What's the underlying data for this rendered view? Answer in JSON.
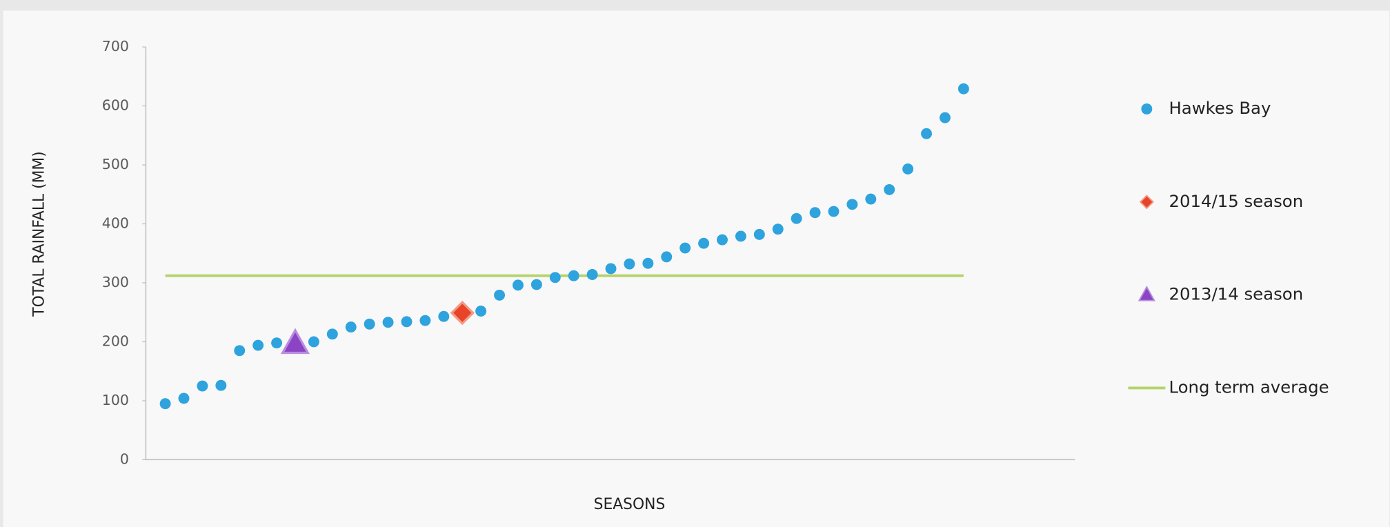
{
  "chart_data": {
    "type": "scatter",
    "xlabel": "SEASONS",
    "ylabel": "TOTAL RAINFALL (MM)",
    "xlim": [
      0,
      50
    ],
    "ylim": [
      0,
      700
    ],
    "yticks": [
      0,
      100,
      200,
      300,
      400,
      500,
      600,
      700
    ],
    "legend": "right",
    "series": [
      {
        "name": "Hawkes Bay",
        "color": "#2ea3dd",
        "marker": "circle",
        "x": [
          1,
          2,
          3,
          4,
          5,
          6,
          7,
          8,
          9,
          10,
          11,
          12,
          13,
          14,
          15,
          16,
          17,
          18,
          19,
          20,
          21,
          22,
          23,
          24,
          25,
          26,
          27,
          28,
          29,
          30,
          31,
          32,
          33,
          34,
          35,
          36,
          37,
          38,
          39,
          40,
          41,
          42,
          43,
          44
        ],
        "values": [
          95,
          104,
          125,
          126,
          185,
          194,
          198,
          null,
          200,
          213,
          225,
          230,
          233,
          234,
          236,
          243,
          null,
          252,
          279,
          296,
          297,
          309,
          312,
          314,
          324,
          332,
          333,
          344,
          359,
          367,
          373,
          379,
          382,
          391,
          409,
          419,
          421,
          433,
          442,
          458,
          493,
          553,
          580,
          629
        ]
      },
      {
        "name": "2014/15 season",
        "color": "#e8442a",
        "marker": "diamond",
        "x": [
          17
        ],
        "values": [
          249
        ]
      },
      {
        "name": "2013/14 season",
        "color": "#8b44c4",
        "marker": "triangle",
        "x": [
          8
        ],
        "values": [
          197
        ]
      },
      {
        "name": "Long term average",
        "color": "#b5d36b",
        "marker": "line",
        "x": [
          1,
          44
        ],
        "values": [
          312,
          312
        ]
      }
    ]
  }
}
